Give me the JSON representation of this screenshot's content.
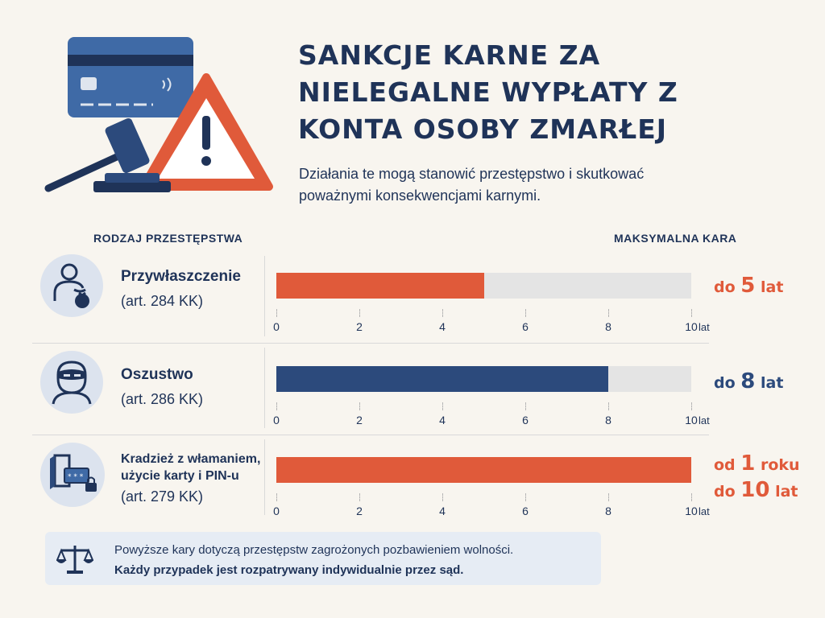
{
  "header": {
    "title_lines": [
      "SANKCJE KARNE ZA",
      "NIELEGALNE WYPŁATY Z",
      "KONTA OSOBY ZMARŁEJ"
    ],
    "subtitle_lines": [
      "Działania te mogą stanowić przestępstwo i skutkować",
      "poważnymi konsekwencjami karnymi."
    ]
  },
  "columns": {
    "left": "RODZAJ PRZESTĘPSTWA",
    "right": "MAKSYMALNA KARA"
  },
  "colors": {
    "accent": "#e05a3a",
    "navy": "#2c4a7c",
    "track": "#e4e4e4"
  },
  "chart_data": {
    "type": "bar",
    "orientation": "horizontal",
    "xlim": [
      0,
      10
    ],
    "xticks": [
      "0",
      "2",
      "4",
      "6",
      "8",
      "10"
    ],
    "x_unit": "lat",
    "categories": [
      "Przywłaszczenie",
      "Oszustwo",
      "Kradzież z włamaniem, użycie karty i PIN-u"
    ],
    "values": [
      5,
      8,
      10
    ],
    "bar_colors": [
      "#e05a3a",
      "#2c4a7c",
      "#e05a3a"
    ]
  },
  "rows": [
    {
      "icon": "person-moneybag-icon",
      "name_lines": [
        "Przywłaszczenie"
      ],
      "article": "(art. 284 KK)",
      "penalty_lines": [
        {
          "pre": "do ",
          "num": "5",
          "post": " lat"
        }
      ],
      "penalty_color": "#e05a3a"
    },
    {
      "icon": "masked-thief-icon",
      "name_lines": [
        "Oszustwo"
      ],
      "article": "(art. 286 KK)",
      "penalty_lines": [
        {
          "pre": "do ",
          "num": "8",
          "post": " lat"
        }
      ],
      "penalty_color": "#2c4a7c"
    },
    {
      "icon": "door-card-lock-icon",
      "name_lines": [
        "Kradzież z włamaniem,",
        "użycie karty i PIN-u"
      ],
      "article": "(art. 279 KK)",
      "penalty_lines": [
        {
          "pre": "od ",
          "num": "1",
          "post": " roku"
        },
        {
          "pre": "do ",
          "num": "10",
          "post": " lat"
        }
      ],
      "penalty_color": "#e05a3a"
    }
  ],
  "footer": {
    "icon": "scales-icon",
    "line1": "Powyższe kary dotyczą przestępstw zagrożonych pozbawieniem wolności.",
    "line2": "Każdy przypadek jest rozpatrywany indywidualnie przez sąd."
  }
}
